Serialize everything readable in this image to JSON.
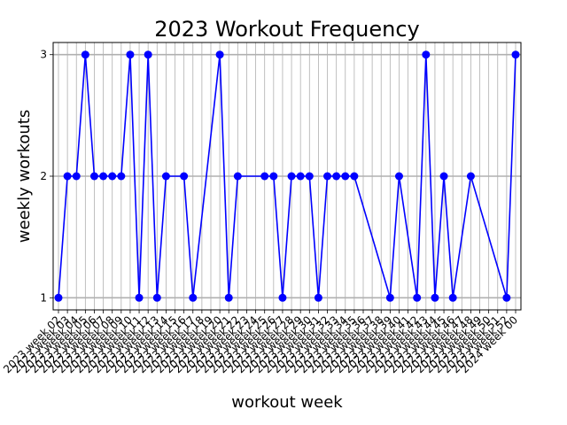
{
  "chart_data": {
    "type": "line",
    "title": "2023 Workout Frequency",
    "xlabel": "workout week",
    "ylabel": "weekly workouts",
    "ylim": [
      0.9,
      3.1
    ],
    "yticks": [
      1,
      2,
      3
    ],
    "grid": true,
    "color": "#0000ff",
    "x_labels": [
      "2023 week 02",
      "2023 week 03",
      "2023 week 04",
      "2023 week 05",
      "2023 week 06",
      "2023 week 07",
      "2023 week 08",
      "2023 week 09",
      "2023 week 10",
      "2023 week 11",
      "2023 week 12",
      "2023 week 13",
      "2023 week 14",
      "2023 week 15",
      "2023 week 16",
      "2023 week 17",
      "2023 week 18",
      "2023 week 19",
      "2023 week 20",
      "2023 week 21",
      "2023 week 22",
      "2023 week 23",
      "2023 week 24",
      "2023 week 25",
      "2023 week 26",
      "2023 week 27",
      "2023 week 28",
      "2023 week 29",
      "2023 week 30",
      "2023 week 31",
      "2023 week 32",
      "2023 week 33",
      "2023 week 34",
      "2023 week 35",
      "2023 week 36",
      "2023 week 37",
      "2023 week 38",
      "2023 week 39",
      "2023 week 40",
      "2023 week 41",
      "2023 week 42",
      "2023 week 43",
      "2023 week 44",
      "2023 week 45",
      "2023 week 46",
      "2023 week 47",
      "2023 week 48",
      "2023 week 49",
      "2023 week 50",
      "2023 week 51",
      "2023 week 52",
      "2024 week 00"
    ],
    "points": [
      {
        "x": "2023 week 02",
        "y": 1
      },
      {
        "x": "2023 week 03",
        "y": 2
      },
      {
        "x": "2023 week 04",
        "y": 2
      },
      {
        "x": "2023 week 05",
        "y": 3
      },
      {
        "x": "2023 week 06",
        "y": 2
      },
      {
        "x": "2023 week 07",
        "y": 2
      },
      {
        "x": "2023 week 08",
        "y": 2
      },
      {
        "x": "2023 week 09",
        "y": 2
      },
      {
        "x": "2023 week 10",
        "y": 3
      },
      {
        "x": "2023 week 11",
        "y": 1
      },
      {
        "x": "2023 week 12",
        "y": 3
      },
      {
        "x": "2023 week 13",
        "y": 1
      },
      {
        "x": "2023 week 14",
        "y": 2
      },
      {
        "x": "2023 week 16",
        "y": 2
      },
      {
        "x": "2023 week 17",
        "y": 1
      },
      {
        "x": "2023 week 20",
        "y": 3
      },
      {
        "x": "2023 week 21",
        "y": 1
      },
      {
        "x": "2023 week 22",
        "y": 2
      },
      {
        "x": "2023 week 25",
        "y": 2
      },
      {
        "x": "2023 week 26",
        "y": 2
      },
      {
        "x": "2023 week 27",
        "y": 1
      },
      {
        "x": "2023 week 28",
        "y": 2
      },
      {
        "x": "2023 week 29",
        "y": 2
      },
      {
        "x": "2023 week 30",
        "y": 2
      },
      {
        "x": "2023 week 31",
        "y": 1
      },
      {
        "x": "2023 week 32",
        "y": 2
      },
      {
        "x": "2023 week 33",
        "y": 2
      },
      {
        "x": "2023 week 34",
        "y": 2
      },
      {
        "x": "2023 week 35",
        "y": 2
      },
      {
        "x": "2023 week 39",
        "y": 1
      },
      {
        "x": "2023 week 40",
        "y": 2
      },
      {
        "x": "2023 week 42",
        "y": 1
      },
      {
        "x": "2023 week 43",
        "y": 3
      },
      {
        "x": "2023 week 44",
        "y": 1
      },
      {
        "x": "2023 week 45",
        "y": 2
      },
      {
        "x": "2023 week 46",
        "y": 1
      },
      {
        "x": "2023 week 48",
        "y": 2
      },
      {
        "x": "2023 week 52",
        "y": 1
      },
      {
        "x": "2024 week 00",
        "y": 3
      }
    ]
  }
}
